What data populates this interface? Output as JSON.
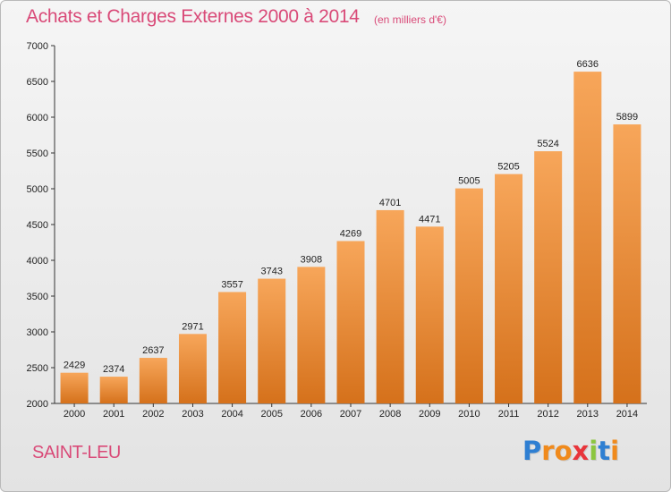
{
  "title": "Achats et Charges Externes 2000 à 2014",
  "subtitle": "(en milliers d'€)",
  "place": "SAINT-LEU",
  "logo": {
    "letters": [
      "P",
      "r",
      "o",
      "x",
      "i",
      "t",
      "i"
    ],
    "colors": [
      "#2f7fd2",
      "#f08a1c",
      "#f08a1c",
      "#e8353b",
      "#8cc63f",
      "#2f7fd2",
      "#f08a1c"
    ]
  },
  "colors": {
    "bar_top": "#f7a65a",
    "bar_bottom": "#d5711b",
    "title": "#d94a78"
  },
  "chart_data": {
    "type": "bar",
    "categories": [
      "2000",
      "2001",
      "2002",
      "2003",
      "2004",
      "2005",
      "2006",
      "2007",
      "2008",
      "2009",
      "2010",
      "2011",
      "2012",
      "2013",
      "2014"
    ],
    "values": [
      2429,
      2374,
      2637,
      2971,
      3557,
      3743,
      3908,
      4269,
      4701,
      4471,
      5005,
      5205,
      5524,
      6636,
      5899
    ],
    "title": "Achats et Charges Externes 2000 à 2014",
    "subtitle": "(en milliers d'€)",
    "ylim": [
      2000,
      7000
    ],
    "yticks": [
      2000,
      2500,
      3000,
      3500,
      4000,
      4500,
      5000,
      5500,
      6000,
      6500,
      7000
    ],
    "grid": false,
    "legend": "none"
  }
}
